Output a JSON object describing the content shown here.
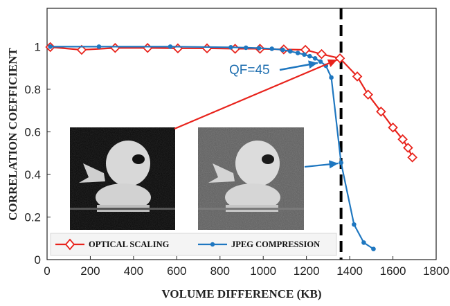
{
  "chart_data": {
    "type": "line",
    "title": "",
    "xlabel": "VOLUME DIFFERENCE (KB)",
    "ylabel": "CORRELATION COEFFICIENT",
    "xlim": [
      0,
      1800
    ],
    "ylim": [
      0,
      1.18
    ],
    "xticks": [
      0,
      200,
      400,
      600,
      800,
      1000,
      1200,
      1400,
      1600,
      1800
    ],
    "yticks": [
      0,
      0.2,
      0.4,
      0.6,
      0.8,
      1
    ],
    "xtick_labels": [
      "0",
      "200",
      "400",
      "600",
      "800",
      "1000",
      "1200",
      "1400",
      "1600",
      "1800"
    ],
    "ytick_labels": [
      "0",
      "0.2",
      "0.4",
      "0.6",
      "0.8",
      "1"
    ],
    "grid": false,
    "legend_position": "bottom",
    "series": [
      {
        "name": "OPTICAL SCALING",
        "color": "#e8231c",
        "marker": "diamond-open",
        "x": [
          15,
          160,
          315,
          465,
          605,
          740,
          870,
          985,
          1095,
          1195,
          1270,
          1355,
          1435,
          1485,
          1545,
          1600,
          1645,
          1670,
          1690
        ],
        "y": [
          0.998,
          0.985,
          0.994,
          0.994,
          0.992,
          0.992,
          0.99,
          0.99,
          0.987,
          0.985,
          0.965,
          0.945,
          0.86,
          0.775,
          0.695,
          0.62,
          0.565,
          0.525,
          0.48
        ]
      },
      {
        "name": "JPEG COMPRESSION",
        "color": "#1f77c0",
        "marker": "dot",
        "x": [
          15,
          240,
          570,
          850,
          920,
          980,
          1040,
          1090,
          1125,
          1160,
          1190,
          1215,
          1240,
          1265,
          1290,
          1315,
          1360,
          1420,
          1465,
          1510
        ],
        "y": [
          1.0,
          1.0,
          1.0,
          0.997,
          0.995,
          0.993,
          0.99,
          0.985,
          0.978,
          0.97,
          0.963,
          0.955,
          0.945,
          0.93,
          0.91,
          0.855,
          0.455,
          0.165,
          0.08,
          0.05
        ]
      }
    ],
    "annotations": [
      {
        "text": "QF=45"
      }
    ],
    "reference_line": {
      "x": 1360,
      "style": "dashed",
      "color": "#000000"
    },
    "insets": [
      {
        "name": "optical-scaling-duck-image",
        "background": "#0a0a0a",
        "points_to_series": "OPTICAL SCALING"
      },
      {
        "name": "jpeg-compression-duck-image",
        "background": "#5a5a5a",
        "points_to_series": "JPEG COMPRESSION"
      }
    ]
  }
}
